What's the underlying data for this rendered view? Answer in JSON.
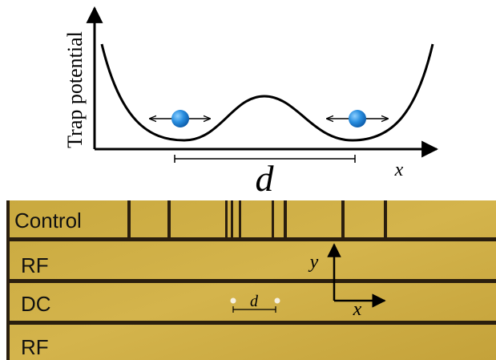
{
  "potential": {
    "y_label": "Trap potential",
    "x_label": "x",
    "distance_label": "d"
  },
  "electrodes": {
    "labels": [
      "Control",
      "RF",
      "DC",
      "RF"
    ],
    "y_axis": "y",
    "x_axis": "x",
    "distance_label": "d"
  }
}
